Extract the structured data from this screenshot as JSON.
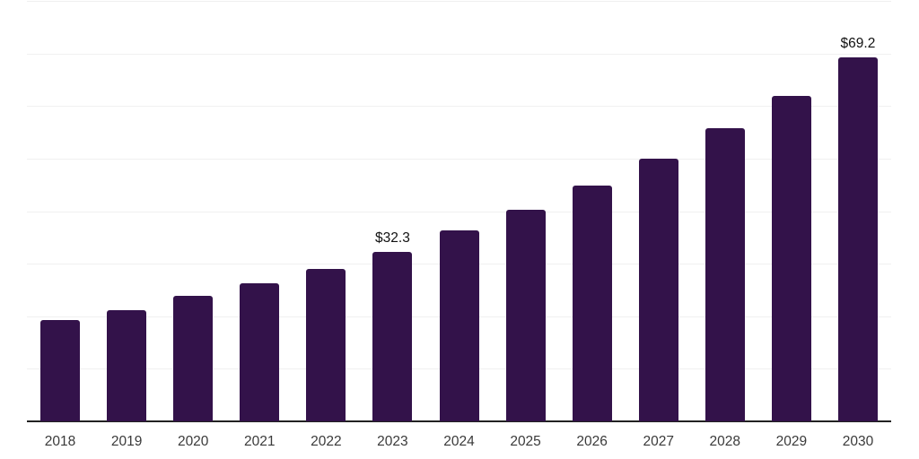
{
  "chart": {
    "background_color": "#ffffff",
    "bar_color": "#33124a",
    "gridline_color": "#f0f0f0",
    "axis_line_color": "#222222",
    "tick_label_color": "#3a3a3a",
    "data_label_color": "#111111"
  },
  "chart_data": {
    "type": "bar",
    "title": "",
    "xlabel": "",
    "ylabel": "",
    "categories": [
      "2018",
      "2019",
      "2020",
      "2021",
      "2022",
      "2023",
      "2024",
      "2025",
      "2026",
      "2027",
      "2028",
      "2029",
      "2030"
    ],
    "values": [
      19.3,
      21.2,
      23.8,
      26.2,
      29.0,
      32.3,
      36.4,
      40.3,
      44.8,
      50.0,
      55.8,
      62.0,
      69.2
    ],
    "data_labels": {
      "2023": "$32.3",
      "2030": "$69.2"
    },
    "ylim": [
      0,
      80
    ],
    "gridline_step": 10,
    "grid": true,
    "legend": false,
    "legend_position": "none"
  }
}
